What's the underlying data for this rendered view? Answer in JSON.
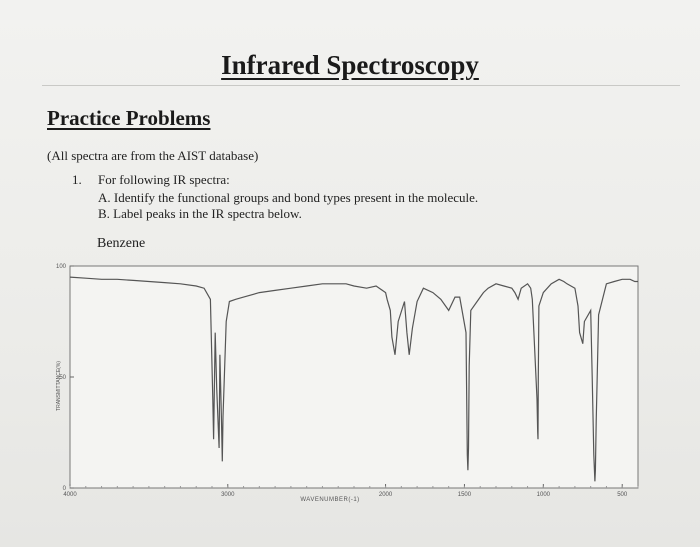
{
  "document": {
    "title": "Infrared Spectroscopy",
    "section_heading": "Practice Problems",
    "source_note": "(All spectra are from the AIST database)",
    "problem": {
      "number": "1.",
      "prompt": "For following IR spectra:",
      "part_a": "A.  Identify the functional groups and bond types present in the molecule.",
      "part_b": "B.  Label peaks in the IR spectra below."
    },
    "compound_name": "Benzene"
  },
  "chart_data": {
    "type": "line",
    "title": "",
    "xlabel": "WAVENUMBER(-1)",
    "ylabel": "TRANSMITTANCE(%)",
    "xlim": [
      4000,
      400
    ],
    "ylim": [
      0,
      100
    ],
    "x_ticks": [
      {
        "value": 4000,
        "label": "4000"
      },
      {
        "value": 3000,
        "label": "3000"
      },
      {
        "value": 2000,
        "label": "2000"
      },
      {
        "value": 1500,
        "label": "1500"
      },
      {
        "value": 1000,
        "label": "1000"
      },
      {
        "value": 500,
        "label": "500"
      }
    ],
    "y_ticks": [
      {
        "value": 100,
        "label": "100"
      },
      {
        "value": 50,
        "label": "50"
      },
      {
        "value": 0,
        "label": "0"
      }
    ],
    "line_color": "#555555",
    "series": [
      {
        "x": [
          4000,
          3900,
          3800,
          3700,
          3600,
          3500,
          3400,
          3300,
          3200,
          3150,
          3110,
          3095,
          3090,
          3080,
          3070,
          3055,
          3050,
          3040,
          3035,
          3030,
          3010,
          2990,
          2950,
          2900,
          2800,
          2700,
          2600,
          2500,
          2400,
          2300,
          2250,
          2200,
          2120,
          2060,
          2000,
          1990,
          1970,
          1960,
          1940,
          1920,
          1880,
          1865,
          1850,
          1830,
          1800,
          1760,
          1700,
          1650,
          1600,
          1560,
          1530,
          1490,
          1482,
          1478,
          1474,
          1470,
          1460,
          1420,
          1400,
          1380,
          1350,
          1300,
          1250,
          1200,
          1180,
          1160,
          1140,
          1100,
          1080,
          1070,
          1060,
          1040,
          1036,
          1034,
          1032,
          1028,
          1000,
          950,
          900,
          870,
          850,
          800,
          780,
          770,
          750,
          740,
          700,
          690,
          680,
          673,
          670,
          665,
          650,
          600,
          550,
          500,
          470,
          450,
          420,
          400
        ],
        "y": [
          95,
          94.5,
          94,
          94,
          93.5,
          93,
          92.5,
          92,
          91,
          90,
          85,
          40,
          22,
          70,
          45,
          18,
          60,
          30,
          12,
          32,
          75,
          84,
          85,
          86,
          88,
          89,
          90,
          91,
          92,
          92,
          92,
          91,
          90,
          91,
          88,
          85,
          80,
          68,
          60,
          75,
          84,
          70,
          60,
          72,
          84,
          90,
          88,
          85,
          80,
          86,
          86,
          70,
          15,
          8,
          18,
          55,
          80,
          84,
          86,
          88,
          90,
          92,
          91,
          90,
          88,
          85,
          90,
          92,
          90,
          85,
          70,
          40,
          25,
          22,
          50,
          82,
          88,
          92,
          94,
          93,
          92,
          90,
          82,
          70,
          65,
          75,
          80,
          50,
          15,
          3,
          8,
          30,
          78,
          92,
          93,
          94,
          94,
          94,
          93,
          93
        ]
      }
    ]
  }
}
